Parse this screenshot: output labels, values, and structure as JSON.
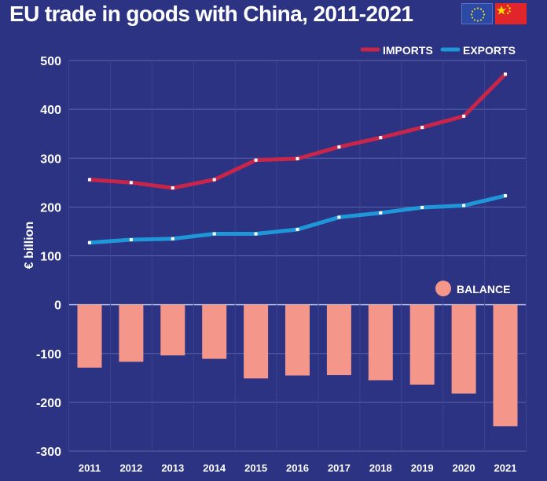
{
  "title": "EU trade in goods with China, 2011-2021",
  "flags": {
    "eu": {
      "name": "eu-flag",
      "color": "#2b4aa6"
    },
    "china": {
      "name": "china-flag",
      "color": "#e0262b"
    }
  },
  "chart_data": {
    "type": "line+bar",
    "categories": [
      "2011",
      "2012",
      "2013",
      "2014",
      "2015",
      "2016",
      "2017",
      "2018",
      "2019",
      "2020",
      "2021"
    ],
    "series": [
      {
        "name": "IMPORTS",
        "type": "line",
        "color": "#c8254b",
        "values": [
          256,
          250,
          239,
          256,
          296,
          299,
          323,
          342,
          363,
          386,
          472
        ]
      },
      {
        "name": "EXPORTS",
        "type": "line",
        "color": "#1e96d8",
        "values": [
          127,
          133,
          135,
          145,
          145,
          154,
          179,
          188,
          199,
          203,
          223
        ]
      },
      {
        "name": "BALANCE",
        "type": "bar",
        "color": "#f4968a",
        "values": [
          -129,
          -117,
          -104,
          -111,
          -151,
          -145,
          -144,
          -155,
          -164,
          -182,
          -249
        ]
      }
    ],
    "ylabel": "€ billion",
    "ylim": [
      -300,
      500
    ],
    "yticks": [
      500,
      400,
      300,
      200,
      100,
      0,
      -100,
      -200,
      -300
    ],
    "grid": true,
    "legend_position": "top-right (lines), middle-right (balance)"
  }
}
